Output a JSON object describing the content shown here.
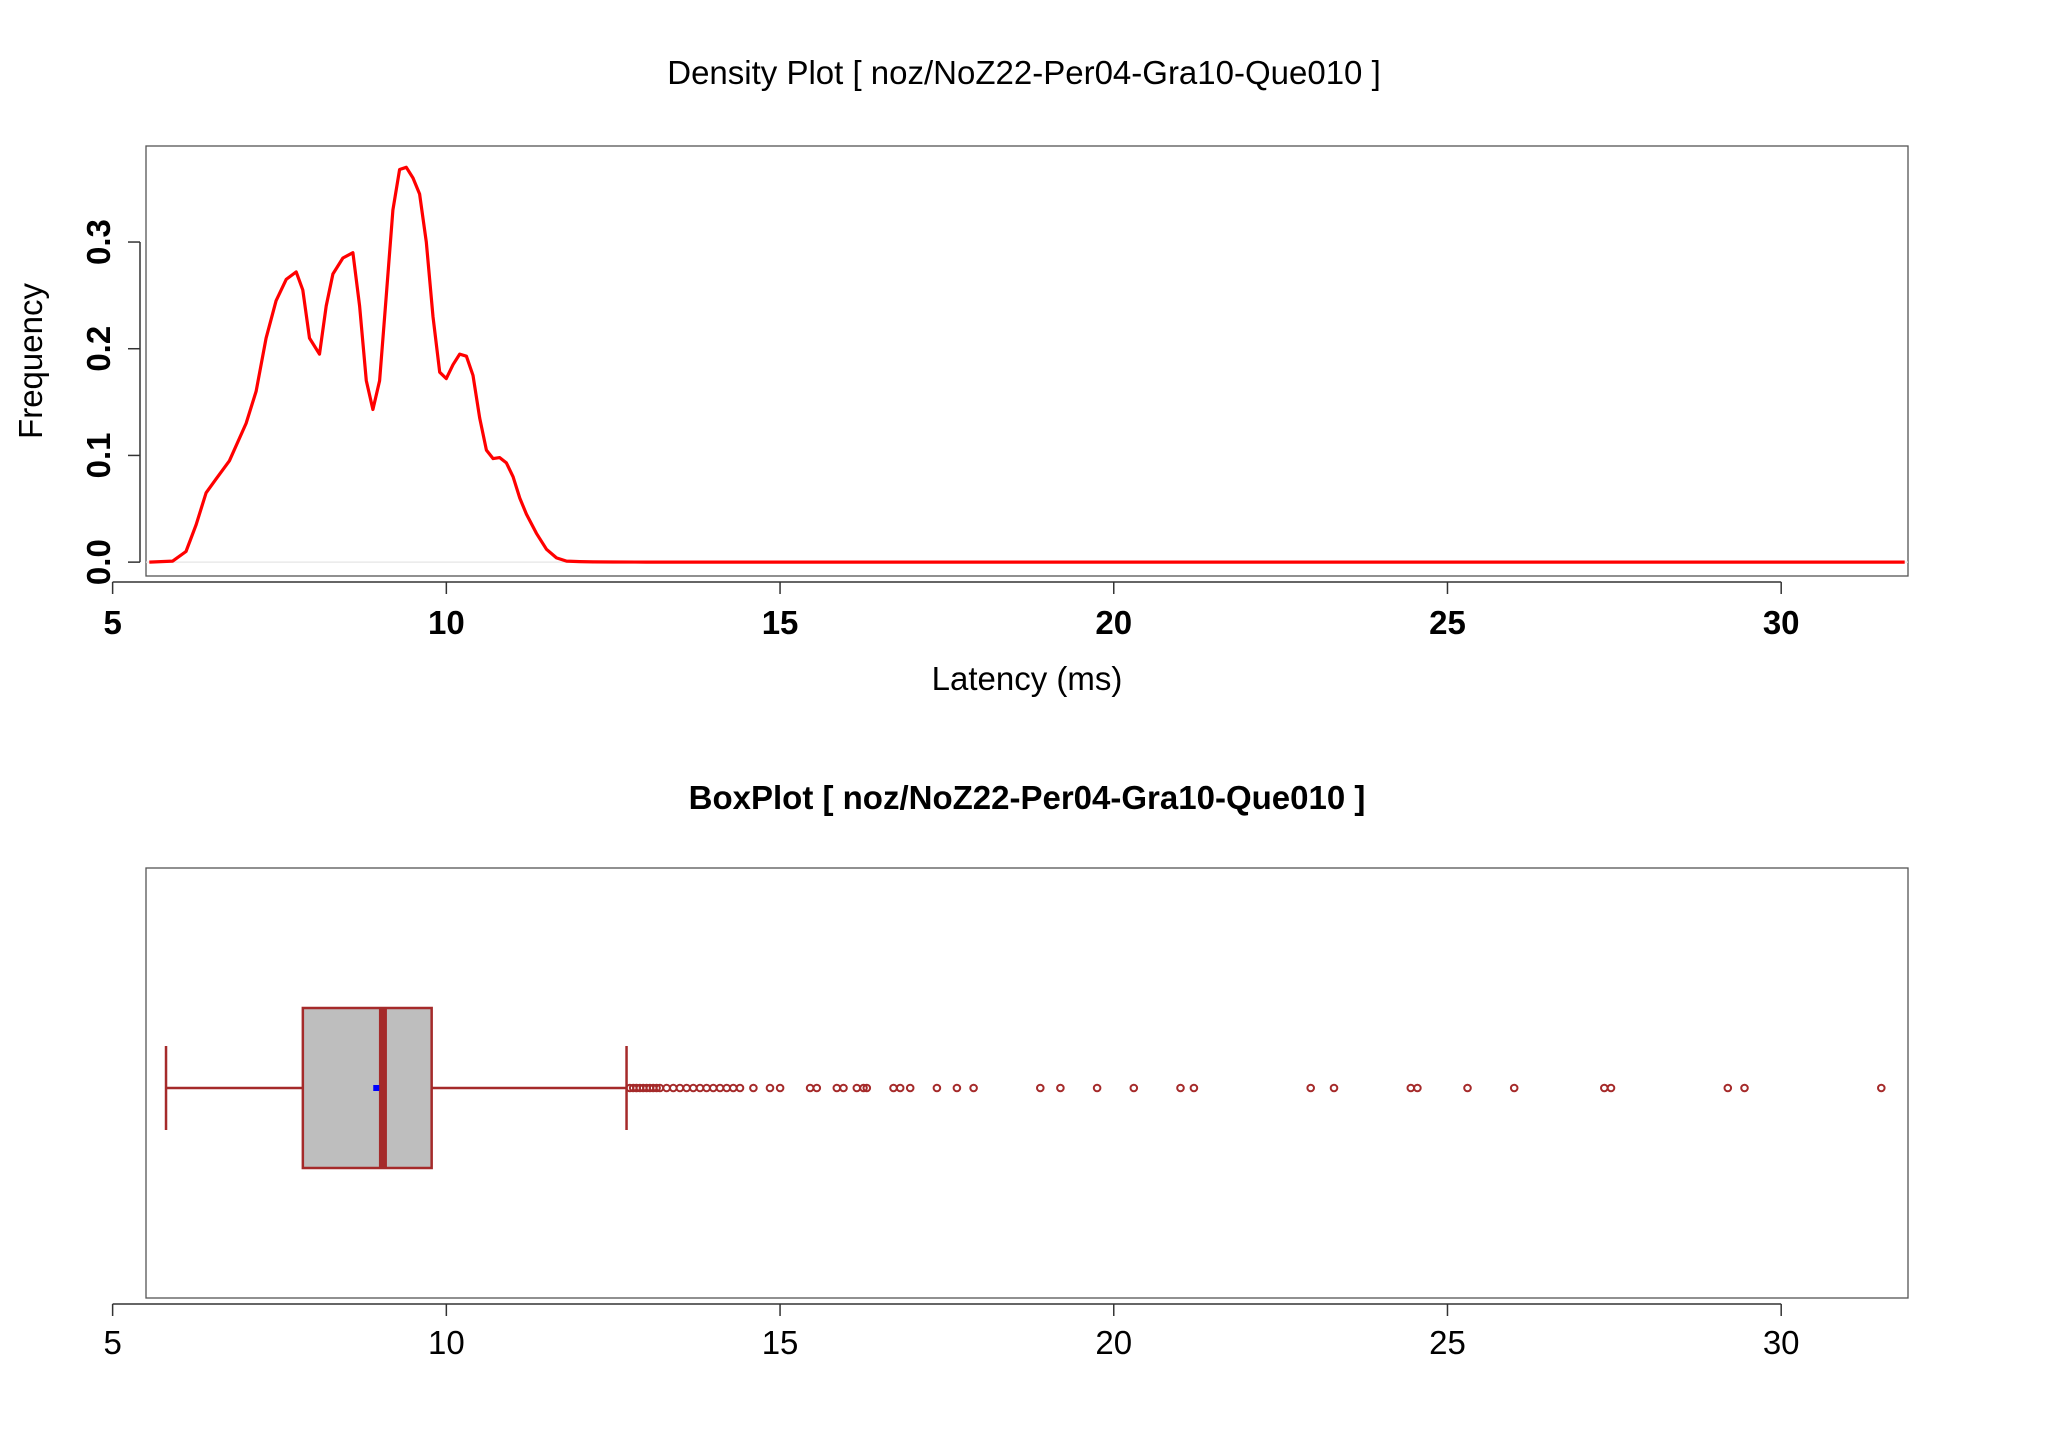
{
  "colors": {
    "density_line": "#ff0000",
    "box_stroke": "#a52a2a",
    "box_fill": "#bebebe",
    "mean_marker": "#0000ff",
    "zero_line": "#e6e6e6"
  },
  "chart_data": [
    {
      "type": "line",
      "title": "Density Plot [ noz/NoZ22-Per04-Gra10-Que010 ]",
      "xlabel": "Latency (ms)",
      "ylabel": "Frequency",
      "xlim": [
        5.5,
        31.9
      ],
      "ylim": [
        -0.013,
        0.39
      ],
      "xticks": [
        5,
        10,
        15,
        20,
        25,
        30
      ],
      "yticks": [
        0.0,
        0.1,
        0.2,
        0.3
      ],
      "xtick_labels": [
        "5",
        "10",
        "15",
        "20",
        "25",
        "30"
      ],
      "ytick_labels": [
        "0.0",
        "0.1",
        "0.2",
        "0.3"
      ],
      "series": [
        {
          "x": [
            5.55,
            5.9,
            6.1,
            6.25,
            6.4,
            6.55,
            6.75,
            7.0,
            7.15,
            7.3,
            7.45,
            7.6,
            7.75,
            7.85,
            7.95,
            8.1,
            8.2,
            8.3,
            8.45,
            8.6,
            8.7,
            8.8,
            8.9,
            9.0,
            9.1,
            9.2,
            9.3,
            9.4,
            9.5,
            9.6,
            9.7,
            9.8,
            9.9,
            10.0,
            10.1,
            10.2,
            10.3,
            10.4,
            10.5,
            10.6,
            10.7,
            10.8,
            10.9,
            11.0,
            11.1,
            11.2,
            11.35,
            11.5,
            11.65,
            11.8,
            12.0,
            12.2,
            12.5,
            13.0,
            14.0,
            16.0,
            20.0,
            25.0,
            30.0,
            31.85
          ],
          "y": [
            0.0,
            0.001,
            0.01,
            0.035,
            0.065,
            0.078,
            0.095,
            0.13,
            0.16,
            0.21,
            0.245,
            0.265,
            0.272,
            0.255,
            0.21,
            0.195,
            0.24,
            0.27,
            0.285,
            0.29,
            0.24,
            0.17,
            0.143,
            0.17,
            0.25,
            0.33,
            0.368,
            0.37,
            0.36,
            0.345,
            0.3,
            0.23,
            0.178,
            0.172,
            0.185,
            0.195,
            0.193,
            0.175,
            0.135,
            0.105,
            0.097,
            0.098,
            0.093,
            0.08,
            0.06,
            0.045,
            0.027,
            0.012,
            0.004,
            0.001,
            0.0005,
            0.0002,
            0.0001,
            0.0,
            0.0,
            0.0,
            0.0,
            0.0,
            0.0,
            0.0
          ]
        }
      ]
    },
    {
      "type": "box",
      "title": "BoxPlot [ noz/NoZ22-Per04-Gra10-Que010 ]",
      "xlim": [
        5.5,
        31.9
      ],
      "xticks": [
        5,
        10,
        15,
        20,
        25,
        30
      ],
      "xtick_labels": [
        "5",
        "10",
        "15",
        "20",
        "25",
        "30"
      ],
      "whisker_low": 5.8,
      "q1": 7.85,
      "median": 9.05,
      "q3": 9.78,
      "whisker_high": 12.7,
      "mean": 8.95,
      "outliers": [
        12.75,
        12.8,
        12.85,
        12.9,
        12.95,
        13.0,
        13.05,
        13.1,
        13.15,
        13.2,
        13.3,
        13.4,
        13.5,
        13.6,
        13.7,
        13.8,
        13.9,
        14.0,
        14.1,
        14.2,
        14.3,
        14.4,
        14.6,
        14.85,
        15.0,
        15.45,
        15.55,
        15.85,
        15.95,
        16.15,
        16.25,
        16.3,
        16.7,
        16.8,
        16.95,
        17.35,
        17.65,
        17.9,
        18.9,
        19.2,
        19.75,
        20.3,
        21.0,
        21.2,
        22.95,
        23.3,
        24.45,
        24.55,
        25.3,
        26.0,
        27.35,
        27.45,
        29.2,
        29.45,
        31.5
      ]
    }
  ]
}
